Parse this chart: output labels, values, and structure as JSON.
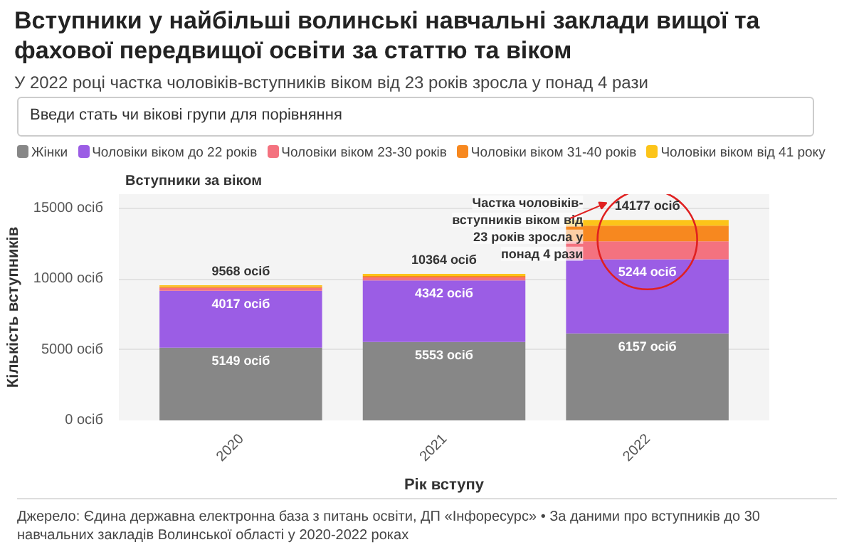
{
  "chart_data": {
    "type": "bar",
    "stacked": true,
    "title": "Вступники у найбільші волинські навчальні заклади вищої та фахової передвищої освіти за статтю та віком",
    "subtitle": "У 2022 році частка чоловіків-вступників віком від 23 років зросла у понад 4 рази",
    "xlabel": "Рік вступу",
    "ylabel": "Кількість вступників",
    "categories": [
      "2020",
      "2021",
      "2022"
    ],
    "series": [
      {
        "name": "Жінки",
        "color": "#878787",
        "values": [
          5149,
          5553,
          6157
        ],
        "value_labels": [
          "5149 осіб",
          "5553 осіб",
          "6157 осіб"
        ]
      },
      {
        "name": "Чоловіки віком до 22 років",
        "color": "#9b5de5",
        "values": [
          4017,
          4342,
          5244
        ],
        "value_labels": [
          "4017 осіб",
          "4342 осіб",
          "5244 осіб"
        ]
      },
      {
        "name": "Чоловіки віком 23-30 років",
        "color": "#f4727f",
        "values": [
          200,
          220,
          1260
        ]
      },
      {
        "name": "Чоловіки віком 31-40 років",
        "color": "#f7881f",
        "values": [
          100,
          100,
          1110
        ]
      },
      {
        "name": "Чоловіки віком від 41 року",
        "color": "#fcc419",
        "values": [
          100,
          149,
          406
        ]
      }
    ],
    "totals": [
      "9568 осіб",
      "10364 осіб",
      "14177 осіб"
    ],
    "ylim": [
      0,
      16000
    ],
    "yticks": [
      {
        "value": 0,
        "label": "0 осіб"
      },
      {
        "value": 5000,
        "label": "5000 осіб"
      },
      {
        "value": 10000,
        "label": "10000 осіб"
      },
      {
        "value": 15000,
        "label": "15000 осіб"
      }
    ],
    "grid": "y",
    "legend": "top",
    "annotations": [
      "Введи стать чи вікові групи для порівняння",
      "Вступники за віком",
      "Частка чоловіків-вступників віком від 23 років зросла у понад 4 рази",
      "Джерело: Єдина державна електронна база з питань освіти, ДП «Інфоресурс» • За даними про вступників до 30 навчальних закладів Волинської області у 2020-2022 роках"
    ]
  }
}
